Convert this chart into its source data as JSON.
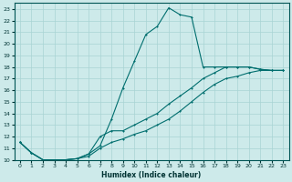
{
  "xlabel": "Humidex (Indice chaleur)",
  "bg_color": "#cdeaea",
  "grid_color": "#a8d4d4",
  "line_color": "#006e6e",
  "xlim": [
    -0.5,
    23.5
  ],
  "ylim": [
    10,
    23.5
  ],
  "xticks": [
    0,
    1,
    2,
    3,
    4,
    5,
    6,
    7,
    8,
    9,
    10,
    11,
    12,
    13,
    14,
    15,
    16,
    17,
    18,
    19,
    20,
    21,
    22,
    23
  ],
  "yticks": [
    10,
    11,
    12,
    13,
    14,
    15,
    16,
    17,
    18,
    19,
    20,
    21,
    22,
    23
  ],
  "line1_x": [
    0,
    1,
    2,
    3,
    4,
    5,
    6,
    7,
    8,
    9,
    10,
    11,
    12,
    13,
    14,
    15,
    16,
    17,
    18,
    19,
    20,
    21,
    22,
    23
  ],
  "line1_y": [
    11.5,
    10.6,
    10.0,
    10.0,
    10.0,
    10.1,
    10.5,
    11.2,
    13.5,
    16.2,
    18.5,
    20.8,
    21.5,
    23.1,
    22.5,
    22.3,
    18.0,
    18.0,
    18.0,
    18.0,
    18.0,
    17.8,
    17.7,
    17.7
  ],
  "line2_x": [
    0,
    1,
    2,
    3,
    4,
    5,
    6,
    7,
    8,
    9,
    10,
    11,
    12,
    13,
    14,
    15,
    16,
    17,
    18,
    19,
    20,
    21,
    22,
    23
  ],
  "line2_y": [
    11.5,
    10.6,
    10.0,
    10.0,
    10.0,
    10.1,
    10.5,
    12.0,
    12.5,
    12.5,
    13.0,
    13.5,
    14.0,
    14.8,
    15.5,
    16.2,
    17.0,
    17.5,
    18.0,
    18.0,
    18.0,
    17.8,
    17.7,
    17.7
  ],
  "line3_x": [
    0,
    1,
    2,
    3,
    4,
    5,
    6,
    7,
    8,
    9,
    10,
    11,
    12,
    13,
    14,
    15,
    16,
    17,
    18,
    19,
    20,
    21,
    22,
    23
  ],
  "line3_y": [
    11.5,
    10.6,
    10.0,
    10.0,
    10.0,
    10.1,
    10.3,
    11.0,
    11.5,
    11.8,
    12.2,
    12.5,
    13.0,
    13.5,
    14.2,
    15.0,
    15.8,
    16.5,
    17.0,
    17.2,
    17.5,
    17.7,
    17.7,
    17.7
  ]
}
